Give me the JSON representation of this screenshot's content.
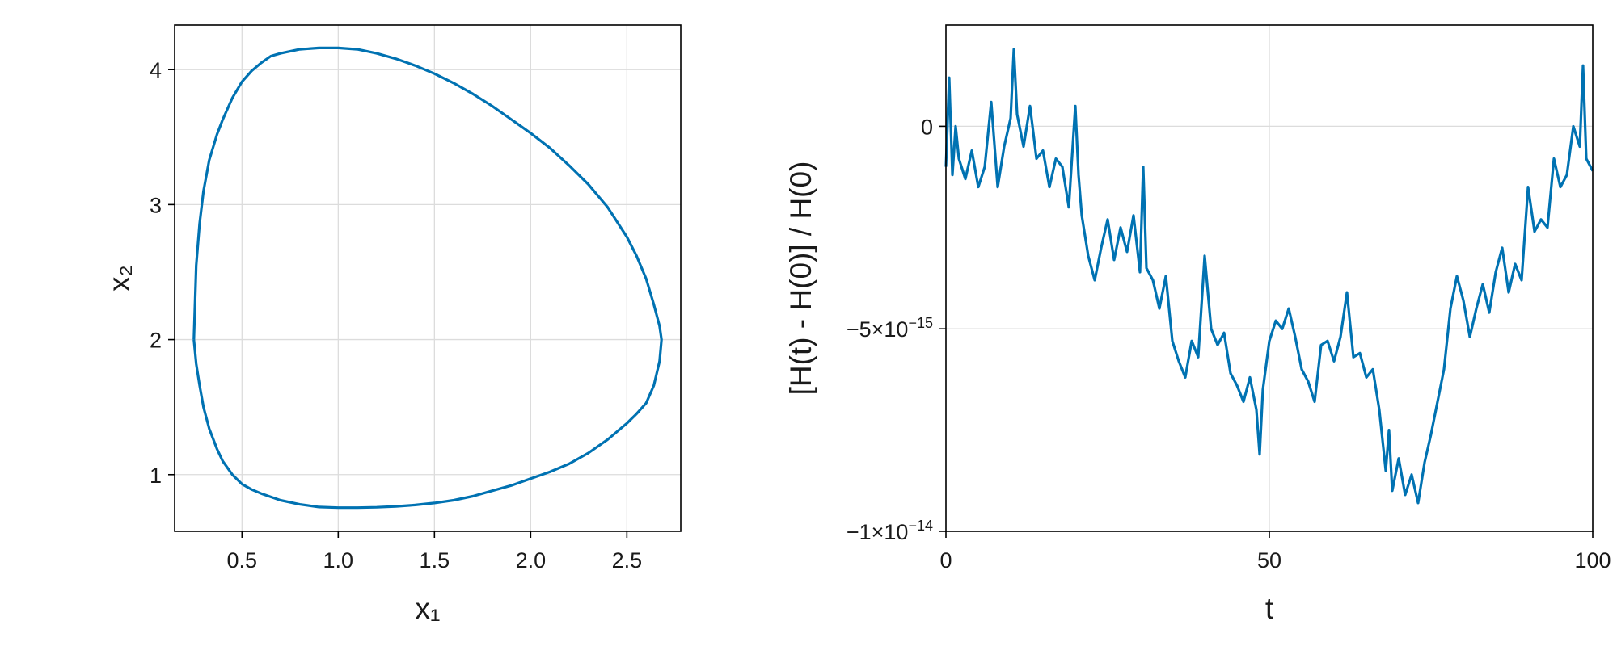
{
  "chart_data": [
    {
      "type": "line",
      "title": "",
      "xlabel": "x₁",
      "ylabel": "x₂",
      "xlim": [
        0.15,
        2.78
      ],
      "ylim": [
        0.58,
        4.33
      ],
      "xticks": [
        {
          "value": 0.5,
          "label": "0.5"
        },
        {
          "value": 1.0,
          "label": "1.0"
        },
        {
          "value": 1.5,
          "label": "1.5"
        },
        {
          "value": 2.0,
          "label": "2.0"
        },
        {
          "value": 2.5,
          "label": "2.5"
        }
      ],
      "yticks": [
        {
          "value": 1,
          "label": "1"
        },
        {
          "value": 2,
          "label": "2"
        },
        {
          "value": 3,
          "label": "3"
        },
        {
          "value": 4,
          "label": "4"
        }
      ],
      "grid": true,
      "color": "#0072b2",
      "series": [
        {
          "x": [
            0.25,
            0.262,
            0.28,
            0.3,
            0.33,
            0.37,
            0.4,
            0.45,
            0.5,
            0.55,
            0.6,
            0.65,
            0.7,
            0.8,
            0.9,
            1.0,
            1.1,
            1.2,
            1.3,
            1.4,
            1.5,
            1.6,
            1.7,
            1.8,
            1.9,
            2.0,
            2.1,
            2.2,
            2.3,
            2.4,
            2.5,
            2.55,
            2.6,
            2.64,
            2.67,
            2.68,
            2.67,
            2.64,
            2.6,
            2.55,
            2.5,
            2.4,
            2.3,
            2.2,
            2.1,
            2.0,
            1.9,
            1.8,
            1.7,
            1.6,
            1.5,
            1.4,
            1.3,
            1.2,
            1.1,
            1.0,
            0.9,
            0.8,
            0.7,
            0.6,
            0.55,
            0.5,
            0.45,
            0.4,
            0.37,
            0.33,
            0.3,
            0.28,
            0.262,
            0.25
          ],
          "y": [
            2.0,
            2.55,
            2.86,
            3.1,
            3.33,
            3.52,
            3.63,
            3.79,
            3.91,
            3.99,
            4.05,
            4.1,
            4.12,
            4.15,
            4.16,
            4.16,
            4.15,
            4.12,
            4.08,
            4.03,
            3.97,
            3.9,
            3.82,
            3.73,
            3.63,
            3.53,
            3.42,
            3.29,
            3.15,
            2.98,
            2.76,
            2.62,
            2.45,
            2.26,
            2.1,
            2.0,
            1.84,
            1.66,
            1.53,
            1.45,
            1.38,
            1.26,
            1.16,
            1.08,
            1.02,
            0.97,
            0.92,
            0.88,
            0.84,
            0.81,
            0.79,
            0.775,
            0.765,
            0.758,
            0.755,
            0.755,
            0.76,
            0.78,
            0.81,
            0.86,
            0.89,
            0.93,
            1.0,
            1.1,
            1.19,
            1.34,
            1.5,
            1.66,
            1.82,
            2.0
          ]
        }
      ]
    },
    {
      "type": "line",
      "title": "",
      "xlabel": "t",
      "ylabel": "[H(t) - H(0)] / H(0)",
      "xlim": [
        0,
        100
      ],
      "ylim": [
        -1e-14,
        2.5e-15
      ],
      "xticks": [
        {
          "value": 0,
          "label": "0"
        },
        {
          "value": 50,
          "label": "50"
        },
        {
          "value": 100,
          "label": "100"
        }
      ],
      "yticks": [
        {
          "value": 0,
          "label": "0",
          "base": "",
          "exp": ""
        },
        {
          "value": -5e-15,
          "label": "",
          "base": "−5×10",
          "exp": "−15"
        },
        {
          "value": -1e-14,
          "label": "",
          "base": "−1×10",
          "exp": "−14"
        }
      ],
      "grid": true,
      "color": "#0072b2",
      "series": [
        {
          "x": [
            0,
            0.5,
            1,
            1.5,
            2,
            3,
            4,
            5,
            6,
            7,
            8,
            9,
            10,
            10.5,
            11,
            12,
            13,
            14,
            15,
            16,
            17,
            18,
            19,
            20,
            20.5,
            21,
            22,
            23,
            24,
            25,
            26,
            27,
            28,
            29,
            30,
            30.5,
            31,
            32,
            33,
            34,
            35,
            36,
            37,
            38,
            39,
            40,
            41,
            42,
            43,
            44,
            45,
            46,
            47,
            48,
            48.5,
            49,
            50,
            51,
            52,
            53,
            54,
            55,
            56,
            57,
            58,
            59,
            60,
            61,
            62,
            63,
            64,
            65,
            66,
            67,
            68,
            68.5,
            69,
            70,
            71,
            72,
            73,
            74,
            75,
            76,
            77,
            78,
            79,
            80,
            81,
            82,
            83,
            84,
            85,
            86,
            87,
            88,
            89,
            90,
            91,
            92,
            93,
            94,
            95,
            96,
            97,
            98,
            98.5,
            99,
            100
          ],
          "y": [
            -1e-15,
            1.2e-15,
            -1.2e-15,
            0.0,
            -8e-16,
            -1.3e-15,
            -6e-16,
            -1.5e-15,
            -1e-15,
            6e-16,
            -1.5e-15,
            -5e-16,
            2e-16,
            1.9e-15,
            3e-16,
            -5e-16,
            5e-16,
            -8e-16,
            -6e-16,
            -1.5e-15,
            -8e-16,
            -1e-15,
            -2e-15,
            5e-16,
            -1.2e-15,
            -2.2e-15,
            -3.2e-15,
            -3.8e-15,
            -3e-15,
            -2.3e-15,
            -3.3e-15,
            -2.5e-15,
            -3.1e-15,
            -2.2e-15,
            -3.6e-15,
            -1e-15,
            -3.5e-15,
            -3.8e-15,
            -4.5e-15,
            -3.7e-15,
            -5.3e-15,
            -5.8e-15,
            -6.2e-15,
            -5.3e-15,
            -5.7e-15,
            -3.2e-15,
            -5e-15,
            -5.4e-15,
            -5.1e-15,
            -6.1e-15,
            -6.4e-15,
            -6.8e-15,
            -6.2e-15,
            -7e-15,
            -8.1e-15,
            -6.5e-15,
            -5.3e-15,
            -4.8e-15,
            -5e-15,
            -4.5e-15,
            -5.2e-15,
            -6e-15,
            -6.3e-15,
            -6.8e-15,
            -5.4e-15,
            -5.3e-15,
            -5.8e-15,
            -5.2e-15,
            -4.1e-15,
            -5.7e-15,
            -5.6e-15,
            -6.2e-15,
            -6e-15,
            -7e-15,
            -8.5e-15,
            -7.5e-15,
            -9e-15,
            -8.2e-15,
            -9.1e-15,
            -8.6e-15,
            -9.3e-15,
            -8.3e-15,
            -7.6e-15,
            -6.8e-15,
            -6e-15,
            -4.5e-15,
            -3.7e-15,
            -4.3e-15,
            -5.2e-15,
            -4.5e-15,
            -3.9e-15,
            -4.6e-15,
            -3.6e-15,
            -3e-15,
            -4.1e-15,
            -3.4e-15,
            -3.8e-15,
            -1.5e-15,
            -2.6e-15,
            -2.3e-15,
            -2.5e-15,
            -8e-16,
            -1.5e-15,
            -1.2e-15,
            0.0,
            -5e-16,
            1.5e-15,
            -8e-16,
            -1.1e-15
          ]
        }
      ]
    }
  ]
}
